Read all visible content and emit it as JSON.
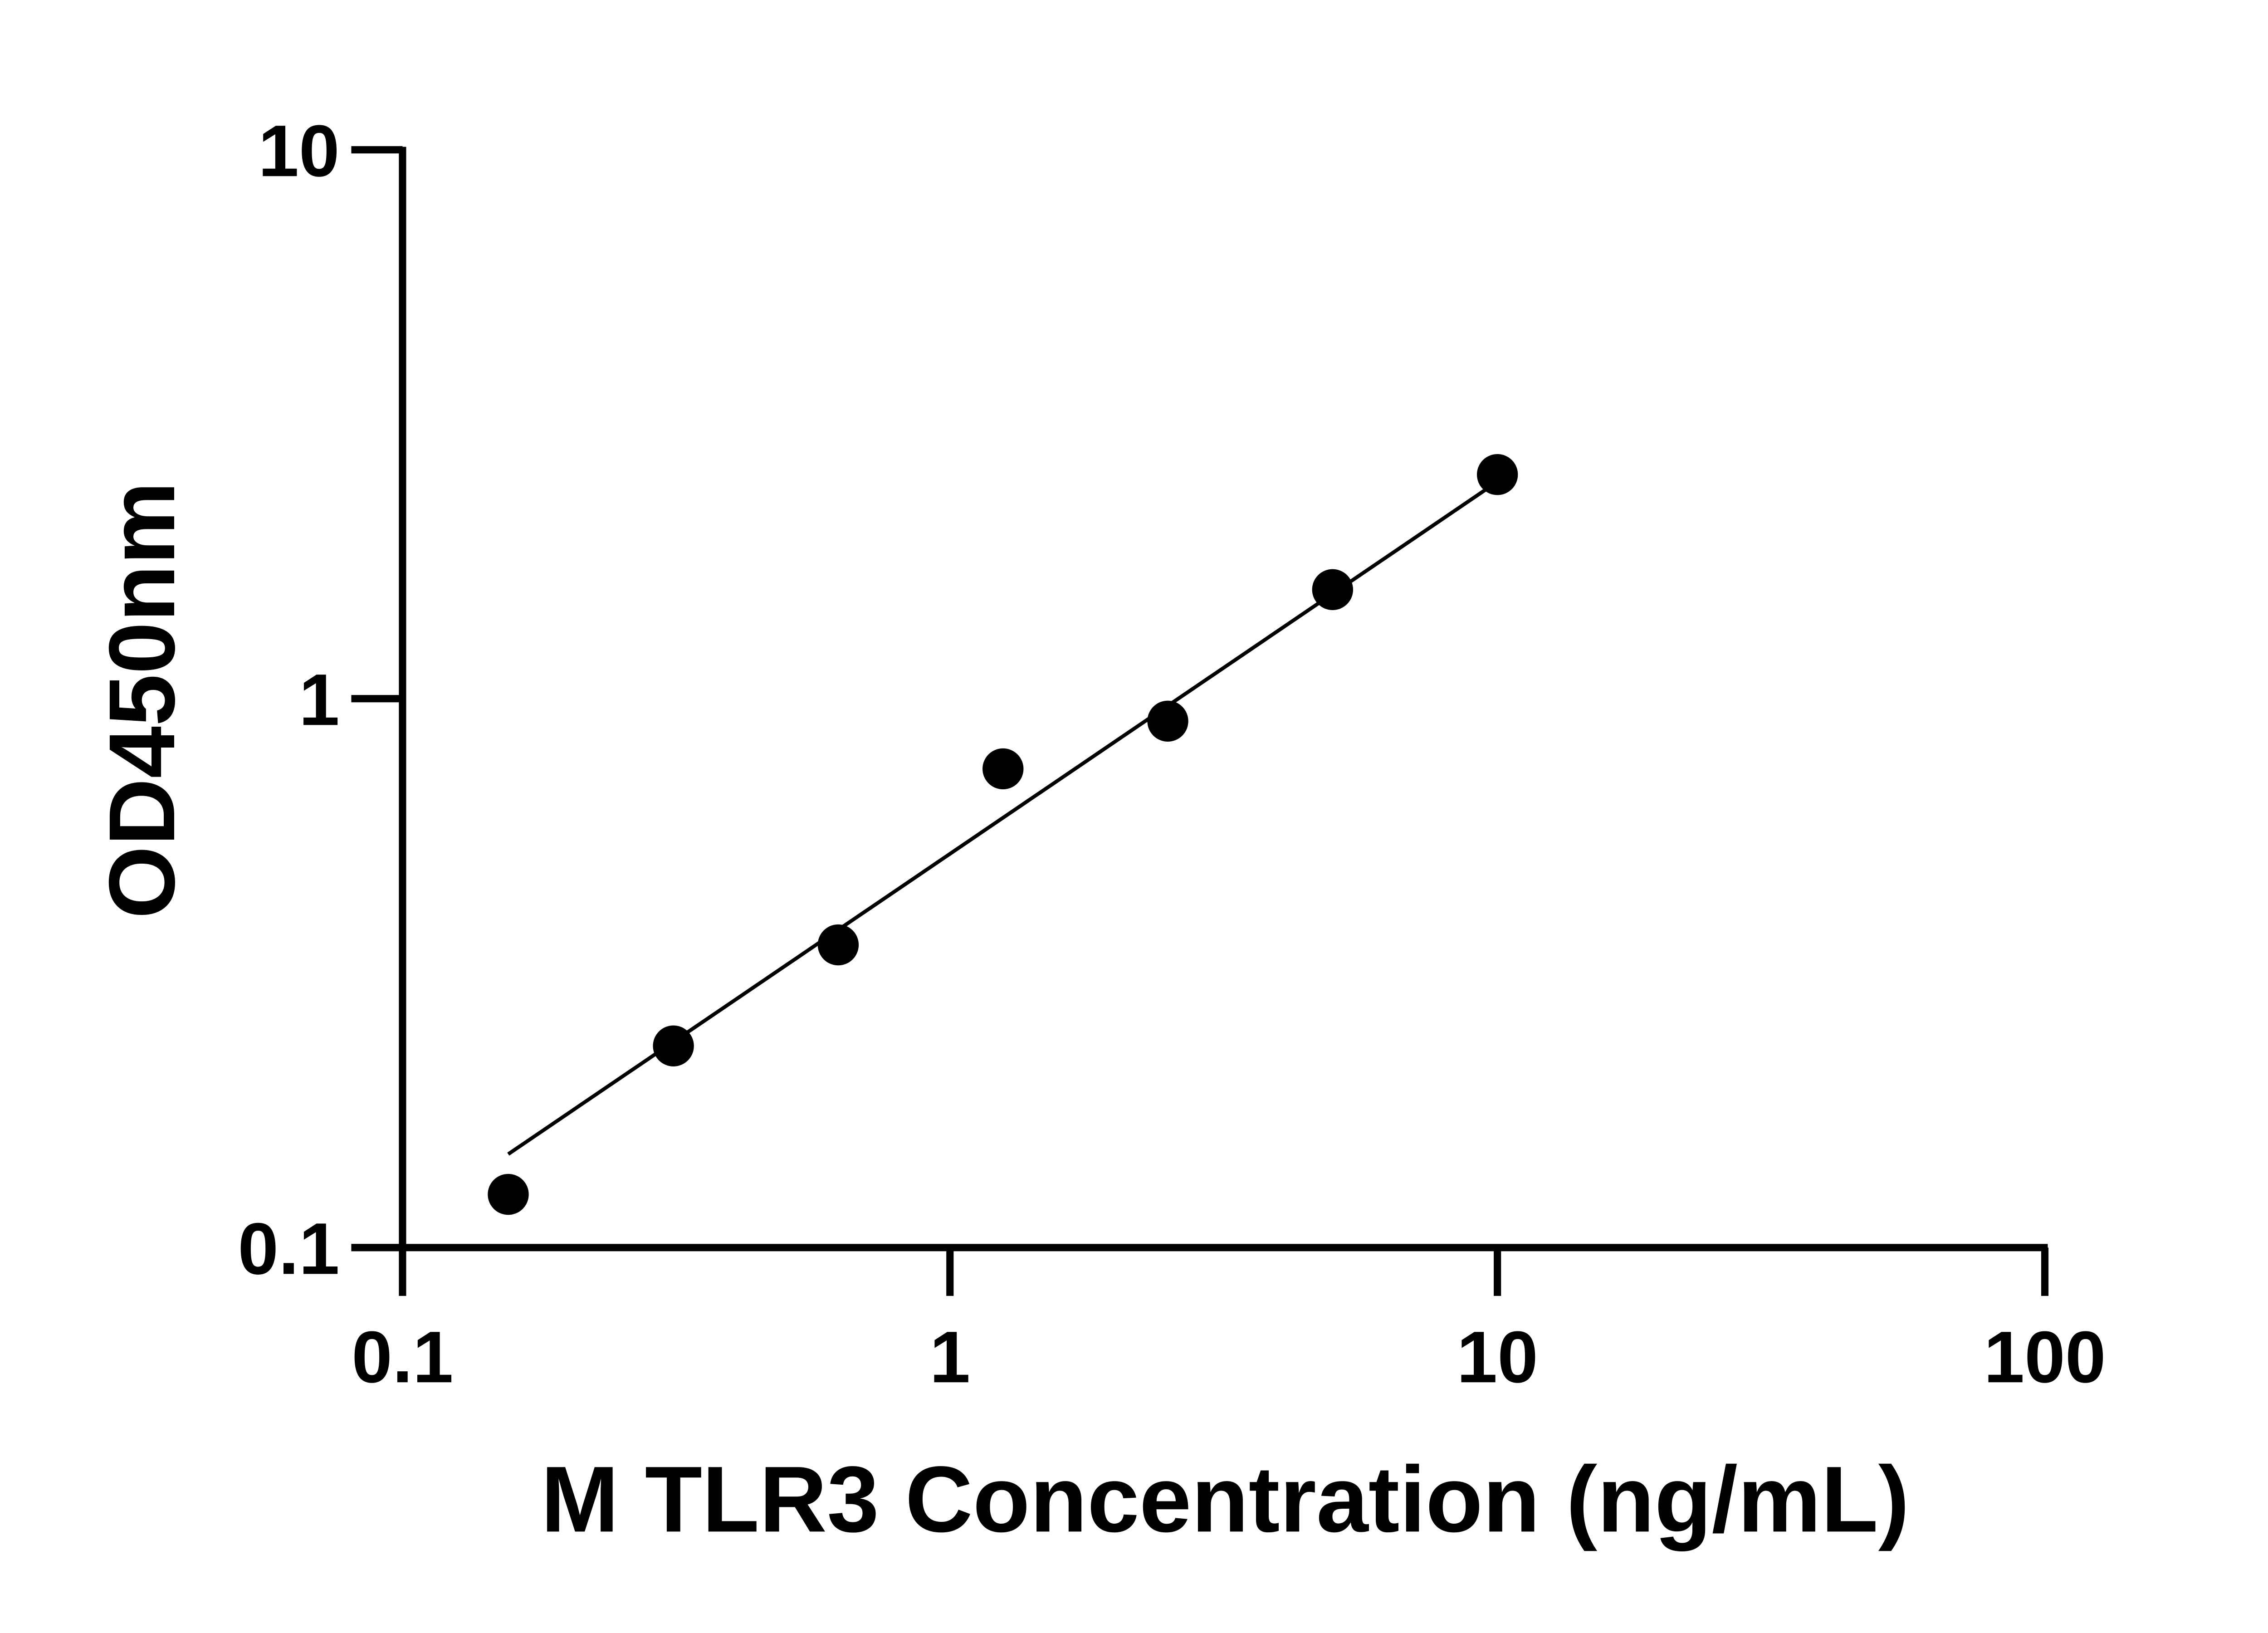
{
  "chart_data": {
    "type": "scatter",
    "title": "",
    "xlabel": "M TLR3 Concentration (ng/mL)",
    "ylabel": "OD450nm",
    "x_scale": "log",
    "y_scale": "log",
    "xlim": [
      0.1,
      100
    ],
    "ylim": [
      0.1,
      10
    ],
    "x_ticks": [
      "0.1",
      "1",
      "10",
      "100"
    ],
    "y_ticks": [
      "0.1",
      "1",
      "10"
    ],
    "grid": false,
    "series": [
      {
        "x": [
          0.156,
          0.3125,
          0.625,
          1.25,
          2.5,
          5,
          10
        ],
        "y": [
          0.125,
          0.233,
          0.356,
          0.745,
          0.91,
          1.58,
          2.56
        ],
        "marker": "circle",
        "color": "#000000"
      }
    ],
    "fit_line": {
      "x": [
        0.156,
        9.5
      ],
      "y": [
        0.148,
        2.4
      ],
      "color": "#000000"
    }
  }
}
